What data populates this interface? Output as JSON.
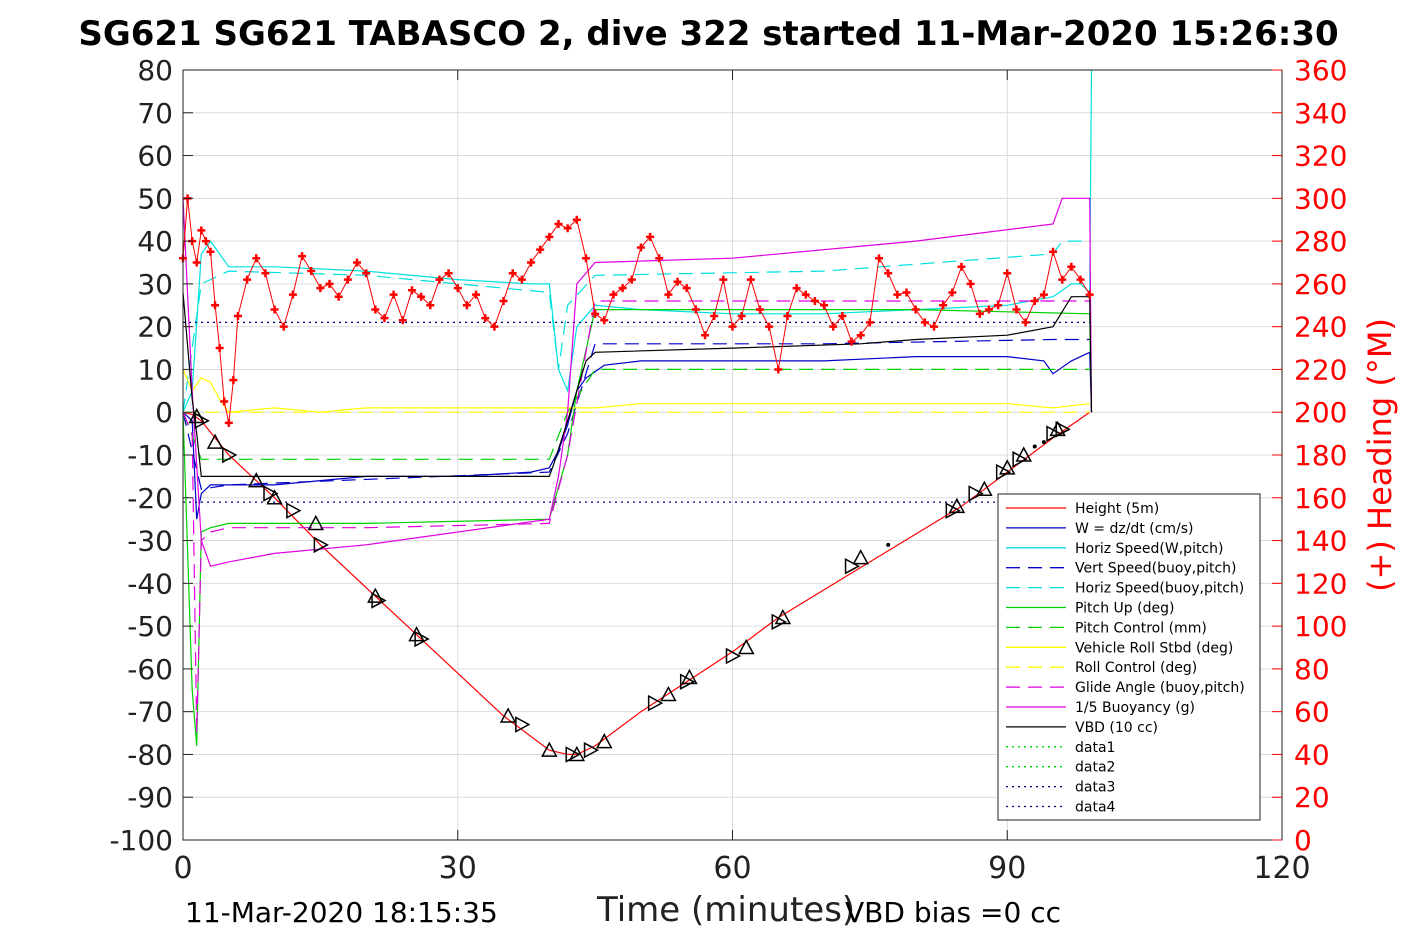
{
  "chart_data": {
    "type": "line",
    "title": "SG621 SG621 TABASCO 2, dive 322 started 11-Mar-2020 15:26:30",
    "xlabel": "Time (minutes)",
    "ylabel": "",
    "y2label": "(+) Heading (°M)",
    "xlim": [
      0,
      120
    ],
    "ylim": [
      -100,
      80
    ],
    "y2lim": [
      0,
      360
    ],
    "xticks": [
      0,
      30,
      60,
      90,
      120
    ],
    "yticks": [
      80,
      70,
      60,
      50,
      40,
      30,
      20,
      10,
      0,
      -10,
      -20,
      -30,
      -40,
      -50,
      -60,
      -70,
      -80,
      -90,
      -100
    ],
    "y2ticks": [
      360,
      340,
      320,
      300,
      280,
      260,
      240,
      220,
      200,
      180,
      160,
      140,
      120,
      100,
      80,
      60,
      40,
      20,
      0
    ],
    "grid": true,
    "legend_position": "bottom-right",
    "series": [
      {
        "name": "Height (5m)",
        "color": "#ff0000",
        "style": "solid",
        "x": [
          0,
          1,
          2,
          5,
          10,
          15,
          21,
          26,
          35,
          40,
          42,
          43,
          45,
          50,
          55,
          60,
          65,
          75,
          85,
          90,
          95,
          99
        ],
        "y": [
          0,
          -0.5,
          -2,
          -10,
          -20,
          -31,
          -43,
          -53,
          -71,
          -79,
          -80,
          -80,
          -78,
          -70,
          -63,
          -56,
          -48,
          -35,
          -22,
          -14,
          -6,
          0
        ]
      },
      {
        "name": "W = dz/dt (cm/s)",
        "color": "#0000c8",
        "style": "solid",
        "x": [
          0,
          1,
          1.5,
          2,
          3,
          5,
          10,
          20,
          30,
          38,
          40,
          41,
          42,
          43,
          44,
          46,
          50,
          60,
          70,
          80,
          90,
          94,
          95,
          97,
          99,
          99.2
        ],
        "y": [
          0,
          -2,
          -25,
          -19,
          -17,
          -17,
          -17,
          -15,
          -15,
          -14,
          -13,
          -9,
          -3,
          5,
          8,
          11,
          12,
          12,
          12,
          13,
          13,
          12,
          9,
          12,
          14,
          0
        ]
      },
      {
        "name": "Horiz Speed(W,pitch)",
        "color": "#00e0e0",
        "style": "solid",
        "x": [
          0,
          1,
          2,
          3,
          4,
          5,
          10,
          20,
          30,
          38,
          40,
          41,
          42,
          43,
          45,
          50,
          60,
          70,
          80,
          90,
          95,
          97,
          98,
          99,
          99.2
        ],
        "y": [
          0,
          5,
          37,
          40,
          37,
          34,
          34,
          33,
          31,
          30,
          30,
          10,
          5,
          20,
          25,
          24,
          23,
          23,
          24,
          25,
          27,
          30,
          30,
          28,
          80
        ]
      },
      {
        "name": "Vert Speed(buoy,pitch)",
        "color": "#0000c8",
        "style": "dashed",
        "x": [
          0,
          2,
          5,
          40,
          42,
          45,
          70,
          95,
          99
        ],
        "y": [
          0,
          -18,
          -17,
          -14,
          -5,
          16,
          16,
          17,
          17
        ]
      },
      {
        "name": "Horiz Speed(buoy,pitch)",
        "color": "#00e0e0",
        "style": "dashed",
        "x": [
          0,
          2,
          5,
          20,
          40,
          41,
          42,
          45,
          70,
          95,
          96,
          99
        ],
        "y": [
          0,
          30,
          33,
          32,
          28,
          10,
          25,
          32,
          33,
          37,
          40,
          40
        ]
      },
      {
        "name": "Pitch Up (deg)",
        "color": "#00d000",
        "style": "solid",
        "x": [
          0,
          1,
          1.5,
          2,
          3,
          5,
          20,
          40,
          42,
          43,
          45,
          60,
          80,
          99,
          99.2
        ],
        "y": [
          0,
          -65,
          -78,
          -28,
          -27,
          -26,
          -26,
          -25,
          -10,
          5,
          24,
          24,
          24,
          23,
          0
        ]
      },
      {
        "name": "Pitch Control (mm)",
        "color": "#00d000",
        "style": "dashed",
        "x": [
          0,
          2,
          40,
          42,
          45,
          99
        ],
        "y": [
          0,
          -11,
          -11,
          0,
          10,
          10
        ]
      },
      {
        "name": "Vehicle Roll Stbd (deg)",
        "color": "#ffff00",
        "style": "solid",
        "x": [
          0,
          1,
          2,
          3,
          4,
          5,
          10,
          15,
          20,
          30,
          40,
          45,
          50,
          60,
          70,
          80,
          90,
          95,
          99
        ],
        "y": [
          10,
          5,
          8,
          7,
          3,
          0,
          1,
          0,
          1,
          1,
          1,
          1,
          2,
          2,
          2,
          2,
          2,
          1,
          2
        ]
      },
      {
        "name": "Roll Control (deg)",
        "color": "#ffff00",
        "style": "dashed",
        "x": [
          0,
          5,
          99
        ],
        "y": [
          0,
          0,
          0
        ]
      },
      {
        "name": "Glide Angle (buoy,pitch)",
        "color": "#e000e0",
        "style": "dashed",
        "x": [
          0,
          1,
          1.5,
          2,
          3,
          5,
          20,
          40,
          42,
          45,
          60,
          99
        ],
        "y": [
          0,
          -5,
          -75,
          -30,
          -28,
          -27,
          -27,
          -26,
          -10,
          26,
          26,
          26
        ]
      },
      {
        "name": "1/5 Buoyancy (g)",
        "color": "#e000e0",
        "style": "solid",
        "x": [
          0,
          1,
          2,
          3,
          5,
          10,
          20,
          40,
          41,
          42,
          43,
          45,
          60,
          80,
          95,
          96,
          99,
          99.2
        ],
        "y": [
          50,
          5,
          -30,
          -36,
          -35,
          -33,
          -31,
          -25,
          -15,
          0,
          30,
          35,
          36,
          40,
          44,
          50,
          50,
          0
        ]
      },
      {
        "name": "VBD (10 cc)",
        "color": "#000000",
        "style": "solid",
        "x": [
          0,
          1,
          1.5,
          2,
          40,
          40.5,
          42,
          44,
          45,
          60,
          74,
          80,
          90,
          95,
          97,
          99,
          99.2
        ],
        "y": [
          28,
          3,
          -5,
          -15,
          -15,
          -12,
          -2,
          12,
          14,
          15,
          16,
          17,
          18,
          20,
          27,
          27,
          0
        ]
      },
      {
        "name": "data1",
        "color": "#00d000",
        "style": "dotted",
        "x": [],
        "y": []
      },
      {
        "name": "data2",
        "color": "#00d000",
        "style": "dotted",
        "x": [],
        "y": []
      },
      {
        "name": "data3",
        "color": "#000080",
        "style": "dotted",
        "x": [
          0,
          99
        ],
        "y": [
          21,
          21
        ]
      },
      {
        "name": "data4",
        "color": "#000080",
        "style": "dotted",
        "x": [
          0,
          99
        ],
        "y": [
          -21,
          -21
        ]
      }
    ],
    "heading_series": {
      "color": "#ff0000",
      "marker": "+",
      "axis": "right",
      "x": [
        0,
        0.5,
        1,
        1.5,
        2,
        2.5,
        3,
        3.5,
        4,
        4.5,
        5,
        5.5,
        6,
        7,
        8,
        9,
        10,
        11,
        12,
        13,
        14,
        15,
        16,
        17,
        18,
        19,
        20,
        21,
        22,
        23,
        24,
        25,
        26,
        27,
        28,
        29,
        30,
        31,
        32,
        33,
        34,
        35,
        36,
        37,
        38,
        39,
        40,
        41,
        42,
        43,
        44,
        45,
        46,
        47,
        48,
        49,
        50,
        51,
        52,
        53,
        54,
        55,
        56,
        57,
        58,
        59,
        60,
        61,
        62,
        63,
        64,
        65,
        66,
        67,
        68,
        69,
        70,
        71,
        72,
        73,
        74,
        75,
        76,
        77,
        78,
        79,
        80,
        81,
        82,
        83,
        84,
        85,
        86,
        87,
        88,
        89,
        90,
        91,
        92,
        93,
        94,
        95,
        96,
        97,
        98,
        99
      ],
      "y": [
        272,
        300,
        280,
        270,
        285,
        280,
        275,
        250,
        230,
        205,
        195,
        215,
        245,
        262,
        272,
        265,
        248,
        240,
        255,
        273,
        266,
        258,
        260,
        254,
        262,
        270,
        265,
        248,
        244,
        255,
        243,
        257,
        254,
        250,
        262,
        265,
        258,
        250,
        255,
        244,
        240,
        252,
        265,
        262,
        270,
        276,
        282,
        288,
        286,
        290,
        272,
        246,
        243,
        255,
        258,
        262,
        277,
        282,
        272,
        255,
        261,
        258,
        248,
        236,
        245,
        262,
        240,
        245,
        262,
        248,
        240,
        220,
        245,
        258,
        255,
        252,
        250,
        240,
        245,
        233,
        236,
        242,
        272,
        265,
        255,
        256,
        248,
        242,
        240,
        250,
        256,
        268,
        260,
        246,
        248,
        250,
        265,
        248,
        242,
        252,
        255,
        275,
        262,
        268,
        262,
        255
      ]
    },
    "markers": {
      "x": [
        1.5,
        2,
        3.5,
        5,
        8,
        9.5,
        10,
        12,
        14.5,
        15,
        21,
        21.3,
        25.5,
        26,
        35.5,
        37,
        40,
        42.5,
        43,
        44.5,
        46,
        51.5,
        53,
        55,
        55.3,
        60,
        61.5,
        65,
        65.5,
        73,
        74,
        84,
        84.5,
        86.5,
        87.5,
        89.5,
        90,
        91.3,
        91.8,
        95,
        95.5,
        96
      ],
      "y": [
        -1,
        -2,
        -7,
        -10,
        -16,
        -19,
        -20,
        -23,
        -26,
        -31,
        -43,
        -44,
        -52,
        -53,
        -71,
        -73,
        -79,
        -80,
        -80,
        -79,
        -77,
        -68,
        -66,
        -63,
        -62,
        -57,
        -55,
        -49,
        -48,
        -36,
        -34,
        -23,
        -22,
        -19,
        -18,
        -14,
        -13,
        -11,
        -10,
        -5,
        -4,
        -4
      ]
    },
    "dots": {
      "x": [
        77,
        93,
        94
      ],
      "y": [
        -31,
        -8,
        -7
      ]
    }
  },
  "footer": {
    "left": "11-Mar-2020 18:15:35",
    "right": "VBD bias =0 cc"
  }
}
